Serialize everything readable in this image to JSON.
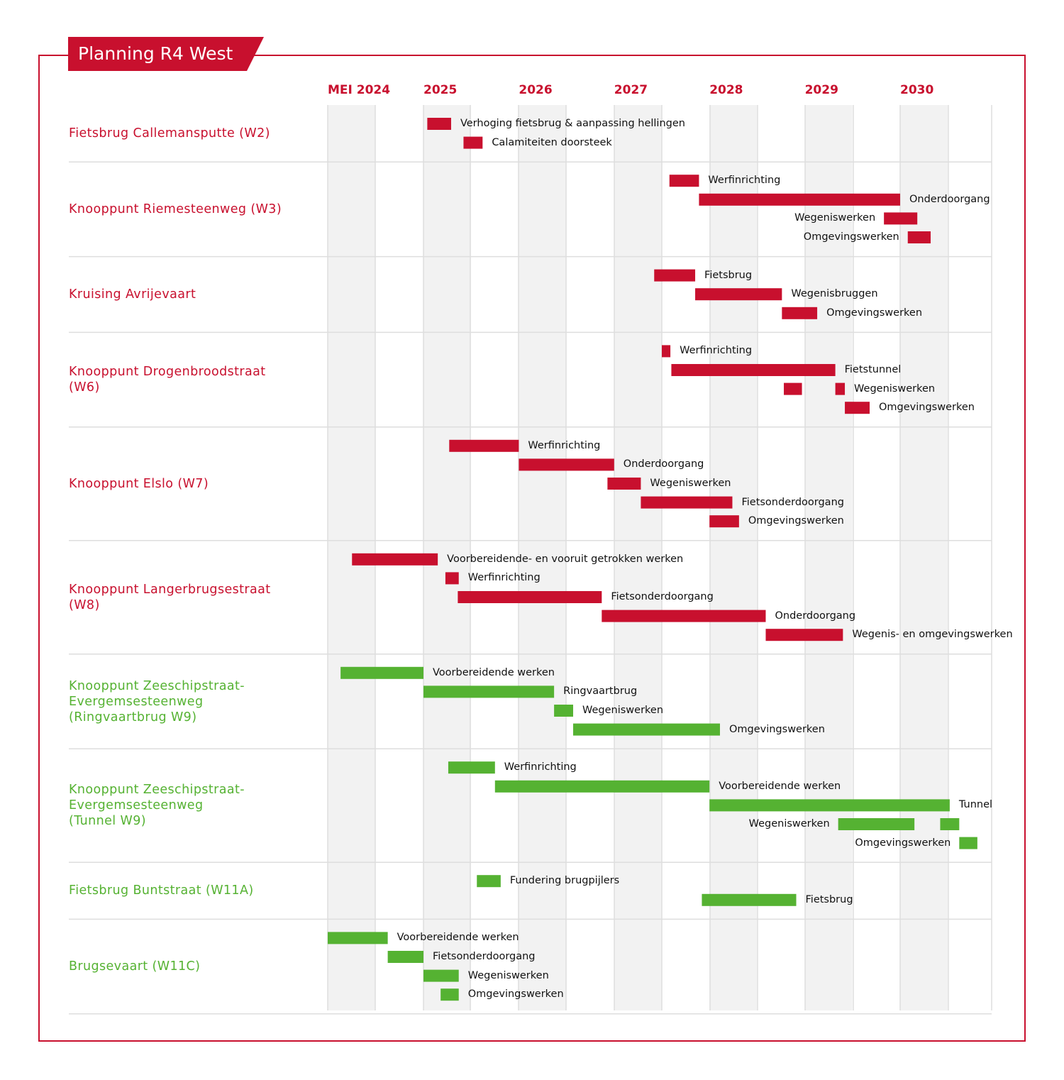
{
  "title": "Planning R4 West",
  "colors": {
    "red": "#c8102e",
    "green": "#55b232",
    "band": "#f2f2f2",
    "grid": "#dedede"
  },
  "chart_data": {
    "type": "gantt",
    "title": "Planning R4 West",
    "x_axis": {
      "unit": "year",
      "ticks": [
        {
          "label": "MEI 2024",
          "value": 2024.33
        },
        {
          "label": "2025",
          "value": 2025
        },
        {
          "label": "2026",
          "value": 2026
        },
        {
          "label": "2027",
          "value": 2027
        },
        {
          "label": "2028",
          "value": 2028
        },
        {
          "label": "2029",
          "value": 2029
        },
        {
          "label": "2030",
          "value": 2030
        }
      ],
      "range": [
        2024.33,
        2031.3
      ],
      "shaded_bands": true
    },
    "groups": [
      {
        "name": "Fietsbrug Callemansputte (W2)",
        "color": "red",
        "rows": 2,
        "tasks": [
          {
            "label": "Verhoging fietsbrug & aanpassing hellingen",
            "start": 2025.04,
            "end": 2025.29,
            "label_side": "right"
          },
          {
            "label": "Calamiteiten doorsteek",
            "start": 2025.42,
            "end": 2025.62,
            "label_side": "right"
          }
        ]
      },
      {
        "name": "Knooppunt Riemesteenweg (W3)",
        "color": "red",
        "rows": 4,
        "tasks": [
          {
            "label": "Werfinrichting",
            "start": 2027.58,
            "end": 2027.89,
            "label_side": "right"
          },
          {
            "label": "Onderdoorgang",
            "start": 2027.89,
            "end": 2030.0,
            "label_side": "right"
          },
          {
            "label": "Wegeniswerken",
            "start": 2029.83,
            "end": 2030.18,
            "label_side": "left"
          },
          {
            "label": "Omgevingswerken",
            "start": 2030.08,
            "end": 2030.32,
            "label_side": "left"
          }
        ]
      },
      {
        "name": "Kruising Avrijevaart",
        "color": "red",
        "rows": 3,
        "tasks": [
          {
            "label": "Fietsbrug",
            "start": 2027.42,
            "end": 2027.85,
            "label_side": "right"
          },
          {
            "label": "Wegenisbruggen",
            "start": 2027.85,
            "end": 2028.76,
            "label_side": "right"
          },
          {
            "label": "Omgevingswerken",
            "start": 2028.76,
            "end": 2029.13,
            "label_side": "right"
          }
        ]
      },
      {
        "name": "Knooppunt Drogenbroodstraat\n(W6)",
        "color": "red",
        "rows": 4,
        "tasks": [
          {
            "label": "Werfinrichting",
            "start": 2027.5,
            "end": 2027.59,
            "label_side": "right"
          },
          {
            "label": "Fietstunnel",
            "start": 2027.6,
            "end": 2029.32,
            "label_side": "right"
          },
          {
            "label": "",
            "start": 2028.78,
            "end": 2028.97,
            "label_side": "none"
          },
          {
            "label": "Wegeniswerken",
            "start": 2029.32,
            "end": 2029.42,
            "label_side": "right",
            "same_row_as_previous": true
          },
          {
            "label": "Omgevingswerken",
            "start": 2029.42,
            "end": 2029.68,
            "label_side": "right"
          }
        ]
      },
      {
        "name": "Knooppunt Elslo (W7)",
        "color": "red",
        "rows": 5,
        "tasks": [
          {
            "label": "Werfinrichting",
            "start": 2025.27,
            "end": 2026.0,
            "label_side": "right"
          },
          {
            "label": "Onderdoorgang",
            "start": 2026.0,
            "end": 2027.0,
            "label_side": "right"
          },
          {
            "label": "Wegeniswerken",
            "start": 2026.93,
            "end": 2027.28,
            "label_side": "right"
          },
          {
            "label": "Fietsonderdoorgang",
            "start": 2027.28,
            "end": 2028.24,
            "label_side": "right"
          },
          {
            "label": "Omgevingswerken",
            "start": 2028.0,
            "end": 2028.31,
            "label_side": "right"
          }
        ]
      },
      {
        "name": "Knooppunt Langerbrugsestraat\n(W8)",
        "color": "red",
        "rows": 5,
        "tasks": [
          {
            "label": "Voorbereidende- en vooruit getrokken werken",
            "start": 2024.5,
            "end": 2025.15,
            "label_side": "right"
          },
          {
            "label": "Werfinrichting",
            "start": 2025.23,
            "end": 2025.37,
            "label_side": "right"
          },
          {
            "label": "Fietsonderdoorgang",
            "start": 2025.36,
            "end": 2026.87,
            "label_side": "right"
          },
          {
            "label": "Onderdoorgang",
            "start": 2026.87,
            "end": 2028.59,
            "label_side": "right"
          },
          {
            "label": "Wegenis- en omgevingswerken",
            "start": 2028.59,
            "end": 2029.4,
            "label_side": "right"
          }
        ]
      },
      {
        "name": "Knooppunt Zeeschipstraat-\nEvergemsesteenweg\n(Ringvaartbrug W9)",
        "color": "green",
        "rows": 4,
        "tasks": [
          {
            "label": "Voorbereidende werken",
            "start": 2024.42,
            "end": 2025.0,
            "label_side": "right"
          },
          {
            "label": "Ringvaartbrug",
            "start": 2025.0,
            "end": 2026.37,
            "label_side": "right"
          },
          {
            "label": "Wegeniswerken",
            "start": 2026.37,
            "end": 2026.57,
            "label_side": "right"
          },
          {
            "label": "Omgevingswerken",
            "start": 2026.57,
            "end": 2028.11,
            "label_side": "right"
          }
        ]
      },
      {
        "name": "Knooppunt Zeeschipstraat-\nEvergemsesteenweg\n(Tunnel W9)",
        "color": "green",
        "rows": 5,
        "tasks": [
          {
            "label": "Werfinrichting",
            "start": 2025.26,
            "end": 2025.75,
            "label_side": "right"
          },
          {
            "label": "Voorbereidende werken",
            "start": 2025.75,
            "end": 2028.0,
            "label_side": "right"
          },
          {
            "label": "Tunnel",
            "start": 2028.0,
            "end": 2030.52,
            "label_side": "right"
          },
          {
            "label": "Wegeniswerken",
            "start": 2029.35,
            "end": 2030.15,
            "label_side": "left"
          },
          {
            "label": "",
            "start": 2030.42,
            "end": 2030.62,
            "label_side": "none",
            "same_row_as_previous": true
          },
          {
            "label": "Omgevingswerken",
            "start": 2030.62,
            "end": 2030.81,
            "label_side": "left"
          }
        ]
      },
      {
        "name": "Fietsbrug Buntstraat (W11A)",
        "color": "green",
        "rows": 2,
        "tasks": [
          {
            "label": "Fundering brugpijlers",
            "start": 2025.56,
            "end": 2025.81,
            "label_side": "right"
          },
          {
            "label": "Fietsbrug",
            "start": 2027.92,
            "end": 2028.91,
            "label_side": "right"
          }
        ]
      },
      {
        "name": "Brugsevaart (W11C)",
        "color": "green",
        "rows": 4,
        "tasks": [
          {
            "label": "Voorbereidende werken",
            "start": 2024.33,
            "end": 2024.75,
            "label_side": "right"
          },
          {
            "label": "Fietsonderdoorgang",
            "start": 2024.75,
            "end": 2025.0,
            "label_side": "right"
          },
          {
            "label": "Wegeniswerken",
            "start": 2025.0,
            "end": 2025.37,
            "label_side": "right"
          },
          {
            "label": "Omgevingswerken",
            "start": 2025.18,
            "end": 2025.37,
            "label_side": "right"
          }
        ]
      }
    ]
  }
}
